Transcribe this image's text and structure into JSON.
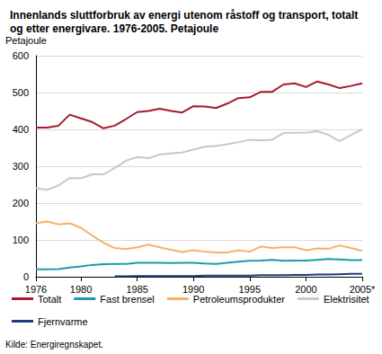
{
  "chart_data": {
    "type": "line",
    "title": "Innenlands sluttforbruk av energi utenom råstoff og transport, totalt og etter energivare. 1976-2005. Petajoule",
    "y_label": "Petajoule",
    "source": "Kilde: Energiregnskapet.",
    "categories": [
      "1976",
      null,
      null,
      null,
      "1980",
      null,
      null,
      null,
      null,
      "1985",
      null,
      null,
      null,
      null,
      "1990",
      null,
      null,
      null,
      null,
      "1995",
      null,
      null,
      null,
      null,
      "2000",
      null,
      null,
      null,
      null,
      "2005*"
    ],
    "ylim": [
      0,
      600
    ],
    "yticks": [
      0,
      100,
      200,
      300,
      400,
      500,
      600
    ],
    "grid": true,
    "legend": "bottom",
    "series": [
      {
        "name": "Totalt",
        "color": "#a6192e",
        "values": [
          405,
          405,
          410,
          440,
          430,
          420,
          403,
          410,
          428,
          447,
          450,
          456,
          450,
          446,
          463,
          462,
          458,
          470,
          485,
          487,
          502,
          502,
          522,
          525,
          515,
          530,
          522,
          512,
          518,
          525
        ]
      },
      {
        "name": "Fast brensel",
        "color": "#1a9bb0",
        "values": [
          20,
          20,
          21,
          25,
          28,
          32,
          34,
          35,
          35,
          38,
          38,
          38,
          37,
          38,
          38,
          36,
          35,
          38,
          41,
          43,
          44,
          46,
          43,
          44,
          44,
          46,
          48,
          47,
          45,
          45
        ]
      },
      {
        "name": "Petroleumsprodukter",
        "color": "#f5b26b",
        "values": [
          145,
          150,
          142,
          145,
          133,
          112,
          92,
          78,
          75,
          80,
          87,
          80,
          73,
          67,
          72,
          68,
          66,
          66,
          72,
          68,
          82,
          78,
          80,
          80,
          72,
          77,
          76,
          85,
          78,
          70
        ]
      },
      {
        "name": "Elektrisitet",
        "color": "#c8c8c8",
        "values": [
          240,
          236,
          248,
          268,
          267,
          278,
          278,
          295,
          315,
          325,
          322,
          332,
          335,
          337,
          345,
          353,
          355,
          360,
          365,
          372,
          370,
          372,
          390,
          391,
          391,
          395,
          385,
          368,
          385,
          400
        ]
      },
      {
        "name": "Fjernvarme",
        "color": "#1f3c7a",
        "values": [
          null,
          null,
          null,
          null,
          null,
          null,
          null,
          1,
          1,
          2,
          2,
          2,
          2,
          2,
          2,
          3,
          3,
          3,
          3,
          3,
          4,
          4,
          4,
          5,
          5,
          6,
          6,
          7,
          8,
          8
        ]
      }
    ]
  }
}
